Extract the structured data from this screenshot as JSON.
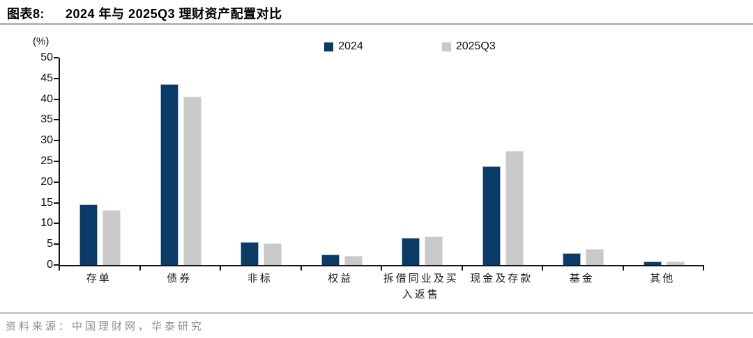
{
  "figure": {
    "label": "图表8:",
    "title": "2024 年与 2025Q3 理财资产配置对比",
    "source": "资料来源：中国理财网，华泰研究"
  },
  "chart_data": {
    "type": "bar",
    "title": "2024 年与 2025Q3 理财资产配置对比",
    "unit_label": "(%)",
    "xlabel": "",
    "ylabel": "(%)",
    "categories": [
      "存单",
      "债券",
      "非标",
      "权益",
      "拆借同业及买\n入返售",
      "现金及存款",
      "基金",
      "其他"
    ],
    "series": [
      {
        "name": "2024",
        "color": "#0a3a66",
        "edge_color": "#9db4c8",
        "values": [
          14.6,
          43.6,
          5.5,
          2.5,
          6.6,
          23.8,
          2.9,
          0.9
        ]
      },
      {
        "name": "2025Q3",
        "color": "#c9c9c9",
        "edge_color": "#e2e2e2",
        "values": [
          13.2,
          40.6,
          5.2,
          2.2,
          6.9,
          27.5,
          3.9,
          0.8
        ]
      }
    ],
    "ylim": [
      0,
      50
    ],
    "ytick_step": 5,
    "grid": false,
    "legend_position": "top-center",
    "axis_color": "#161616",
    "accent_rule_color": "#a6bac9",
    "footer_rule_color": "#aebfcd"
  }
}
